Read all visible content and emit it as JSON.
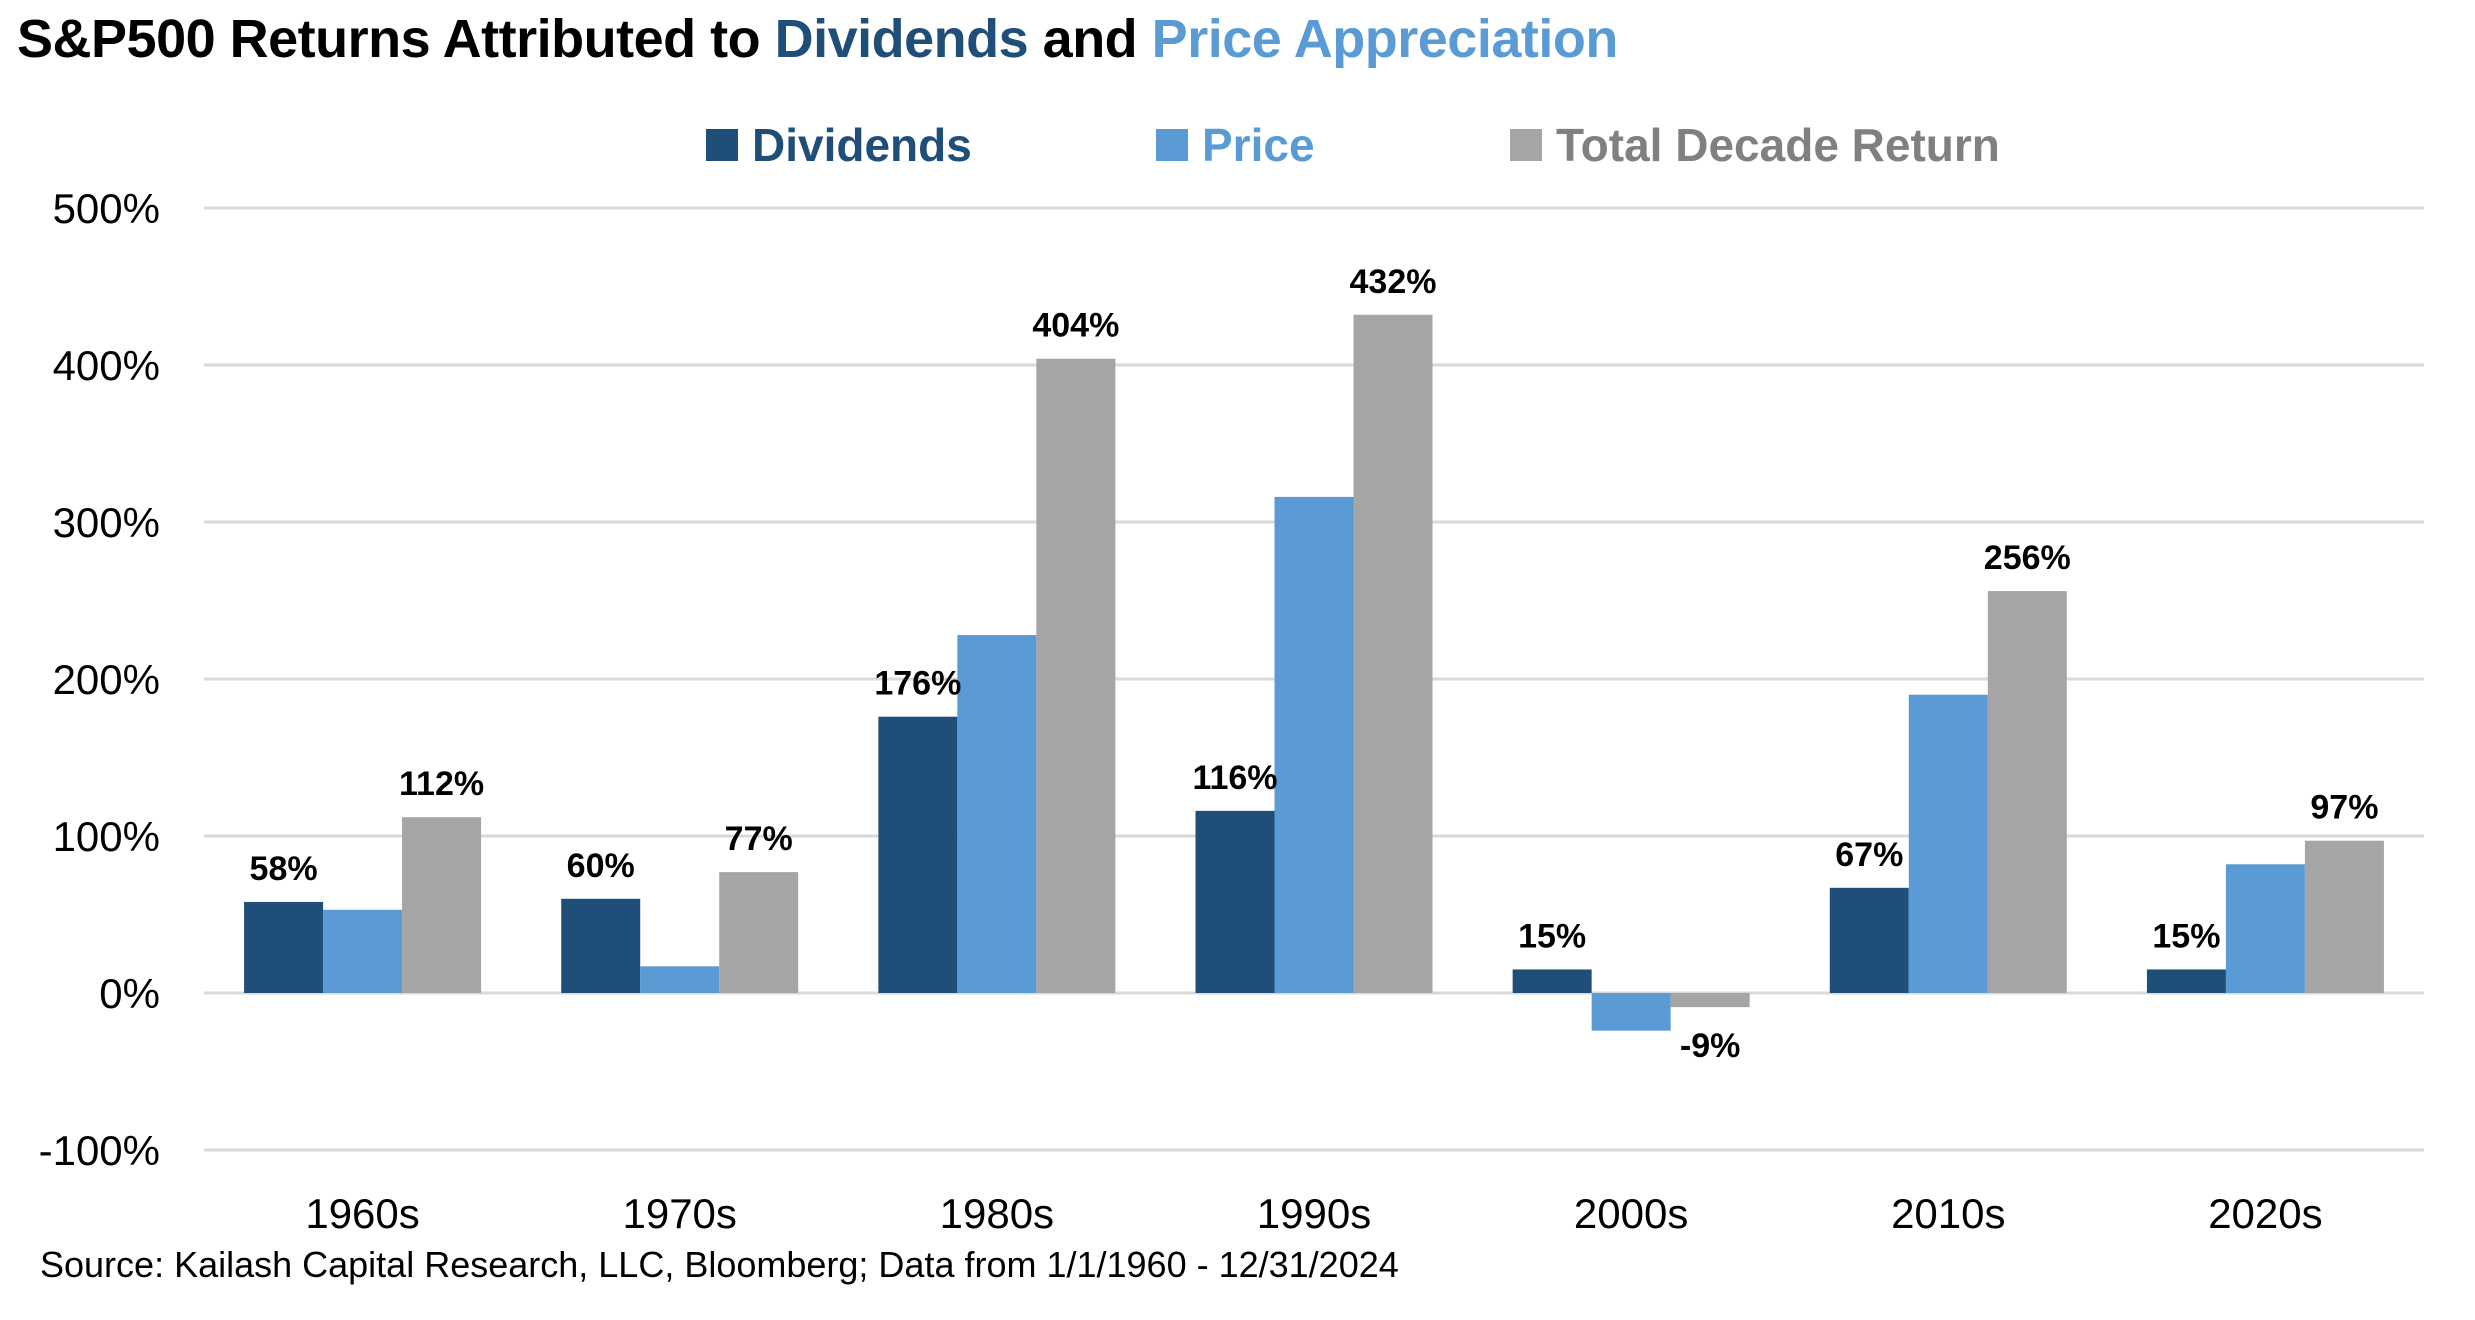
{
  "title": {
    "prefix": "S&P500 Returns Attributed to ",
    "dividends": "Dividends",
    "connector": " and ",
    "price": "Price Appreciation"
  },
  "legend": [
    {
      "label": "Dividends",
      "color": "#1f4e79",
      "text_color": "#1f4e79"
    },
    {
      "label": "Price",
      "color": "#5b9bd5",
      "text_color": "#5b9bd5"
    },
    {
      "label": "Total Decade Return",
      "color": "#a5a5a5",
      "text_color": "#808080"
    }
  ],
  "source": "Source: Kailash Capital Research, LLC, Bloomberg; Data from 1/1/1960 - 12/31/2024",
  "chart_data": {
    "type": "bar",
    "title": "S&P500 Returns Attributed to Dividends and Price Appreciation",
    "xlabel": "",
    "ylabel": "",
    "categories": [
      "1960s",
      "1970s",
      "1980s",
      "1990s",
      "2000s",
      "2010s",
      "2020s"
    ],
    "series": [
      {
        "name": "Dividends",
        "color": "#1f4e79",
        "values": [
          58,
          60,
          176,
          116,
          15,
          67,
          15
        ],
        "labeled": true
      },
      {
        "name": "Price",
        "color": "#5b9bd5",
        "values": [
          53,
          17,
          228,
          316,
          -24,
          190,
          82
        ],
        "labeled": false
      },
      {
        "name": "Total Decade Return",
        "color": "#a5a5a5",
        "values": [
          112,
          77,
          404,
          432,
          -9,
          256,
          97
        ],
        "labeled": true
      }
    ],
    "value_suffix": "%",
    "ylim": [
      -100,
      500
    ],
    "yticks": [
      -100,
      0,
      100,
      200,
      300,
      400,
      500
    ],
    "ytick_labels": [
      "-100%",
      "0%",
      "100%",
      "200%",
      "300%",
      "400%",
      "500%"
    ],
    "grid": true,
    "legend_position": "top-center"
  }
}
